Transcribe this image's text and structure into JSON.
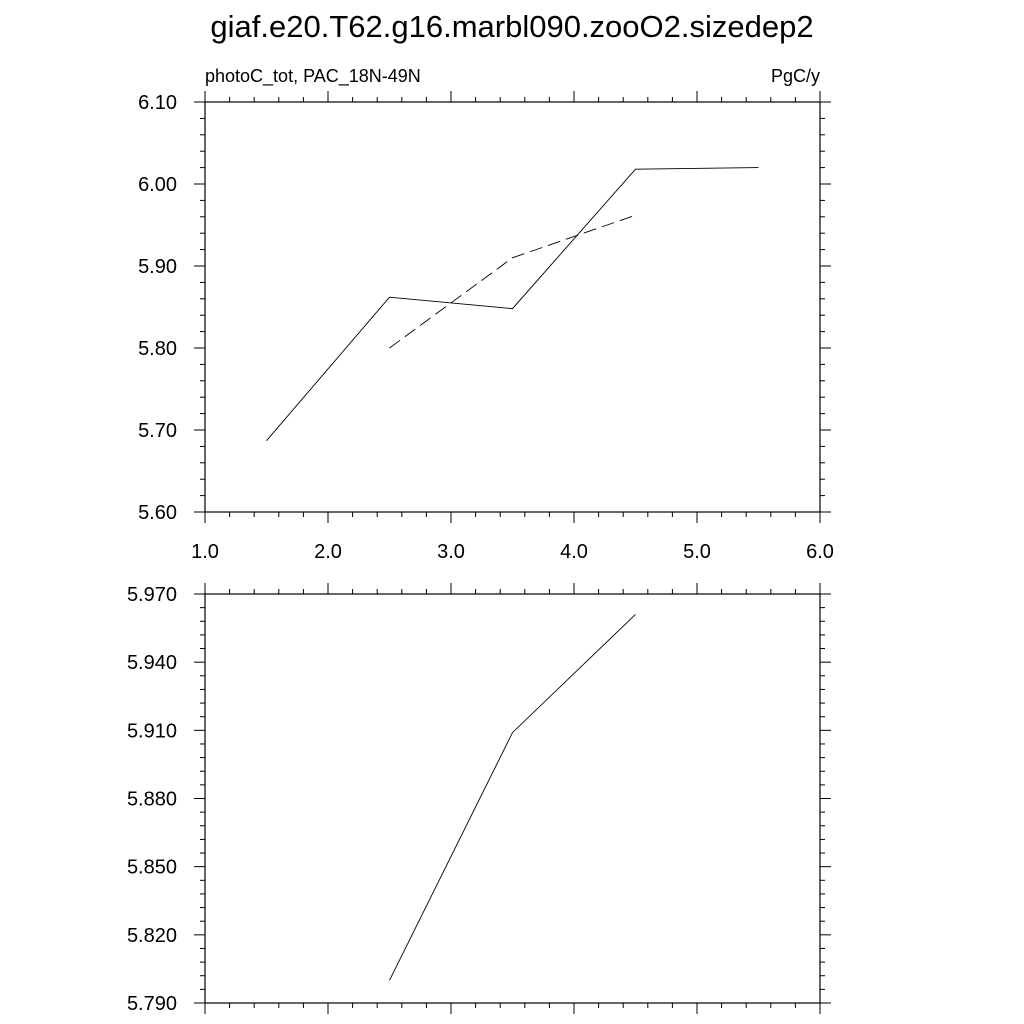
{
  "figure": {
    "title": "giaf.e20.T62.g16.marbl090.zooO2.sizedep2"
  },
  "chart_data": [
    {
      "type": "line",
      "left_label": "photoC_tot, PAC_18N-49N",
      "right_label": "PgC/y",
      "xlim": [
        1.0,
        6.0
      ],
      "ylim": [
        5.6,
        6.1
      ],
      "x_ticks": [
        "1.0",
        "2.0",
        "3.0",
        "4.0",
        "5.0",
        "6.0"
      ],
      "y_ticks": [
        "5.60",
        "5.70",
        "5.80",
        "5.90",
        "6.00",
        "6.10"
      ],
      "grid": false,
      "series": [
        {
          "style": "solid",
          "x": [
            1.5,
            2.5,
            3.5,
            4.5,
            5.5
          ],
          "y": [
            5.687,
            5.862,
            5.848,
            6.018,
            6.02
          ]
        },
        {
          "style": "dashed",
          "x": [
            2.5,
            3.5,
            4.5
          ],
          "y": [
            5.8,
            5.91,
            5.962
          ]
        }
      ]
    },
    {
      "type": "line",
      "xlim": [
        1.0,
        6.0
      ],
      "ylim": [
        5.79,
        5.97
      ],
      "y_ticks": [
        "5.790",
        "5.820",
        "5.850",
        "5.880",
        "5.910",
        "5.940",
        "5.970"
      ],
      "grid": false,
      "series": [
        {
          "style": "solid",
          "x": [
            2.5,
            3.5,
            4.5
          ],
          "y": [
            5.8,
            5.909,
            5.961
          ]
        }
      ]
    }
  ]
}
